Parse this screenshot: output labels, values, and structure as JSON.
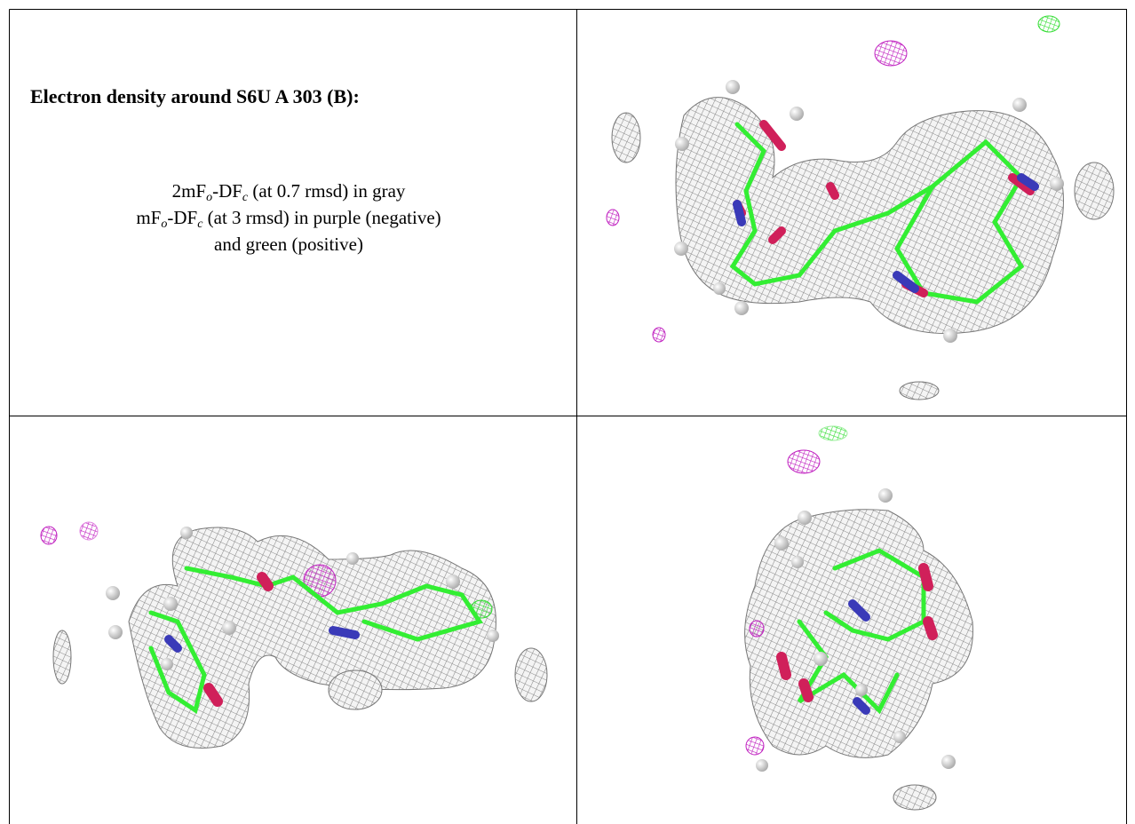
{
  "caption": {
    "title": "Electron density around S6U A 303 (B):",
    "lines": [
      [
        "2mF",
        "o",
        "-DF",
        "c",
        " (at 0.7 rmsd) in gray"
      ],
      [
        "mF",
        "o",
        "-DF",
        "c",
        " (at 3 rmsd) in purple (negative)"
      ],
      [
        "and green (positive)"
      ]
    ]
  }
}
